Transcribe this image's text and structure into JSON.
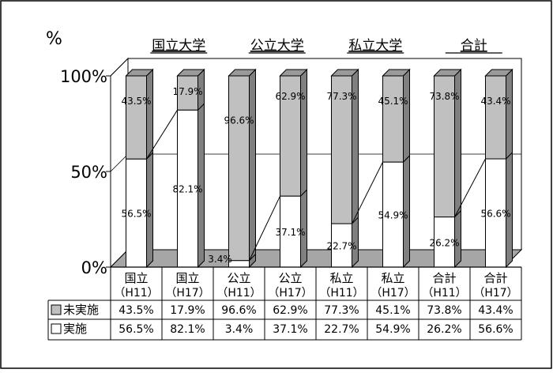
{
  "chart_data": {
    "type": "bar",
    "stacked": true,
    "percent": true,
    "three_d": true,
    "y_unit": "%",
    "ylim": [
      0,
      100
    ],
    "y_ticks": [
      {
        "value": 0,
        "label": "0%"
      },
      {
        "value": 50,
        "label": "50%"
      },
      {
        "value": 100,
        "label": "100%"
      }
    ],
    "grid": true,
    "groups": [
      "国立大学",
      "公立大学",
      "私立大学",
      "合計"
    ],
    "categories": [
      "国立\n（H11）",
      "国立\n（H17）",
      "公立\n（H11）",
      "公立\n（H17）",
      "私立\n（H11）",
      "私立\n（H17）",
      "合計\n（H11）",
      "合計\n（H17）"
    ],
    "series": [
      {
        "name": "実施",
        "color": "#ffffff",
        "values": [
          56.5,
          82.1,
          3.4,
          37.1,
          22.7,
          54.9,
          26.2,
          56.6
        ],
        "labels": [
          "56.5%",
          "82.1%",
          "3.4%",
          "37.1%",
          "22.7%",
          "54.9%",
          "26.2%",
          "56.6%"
        ]
      },
      {
        "name": "未実施",
        "color": "#c0c0c0",
        "values": [
          43.5,
          17.9,
          96.6,
          62.9,
          77.3,
          45.1,
          73.8,
          43.4
        ],
        "labels": [
          "43.5%",
          "17.9%",
          "96.6%",
          "62.9%",
          "77.3%",
          "45.1%",
          "73.8%",
          "43.4%"
        ]
      }
    ],
    "table_rows": [
      {
        "legend": "■未実施",
        "swatch": "#c0c0c0",
        "text": "未実施",
        "series": "未実施"
      },
      {
        "legend": "□実施",
        "swatch": "#ffffff",
        "text": "実施",
        "series": "実施"
      }
    ]
  }
}
